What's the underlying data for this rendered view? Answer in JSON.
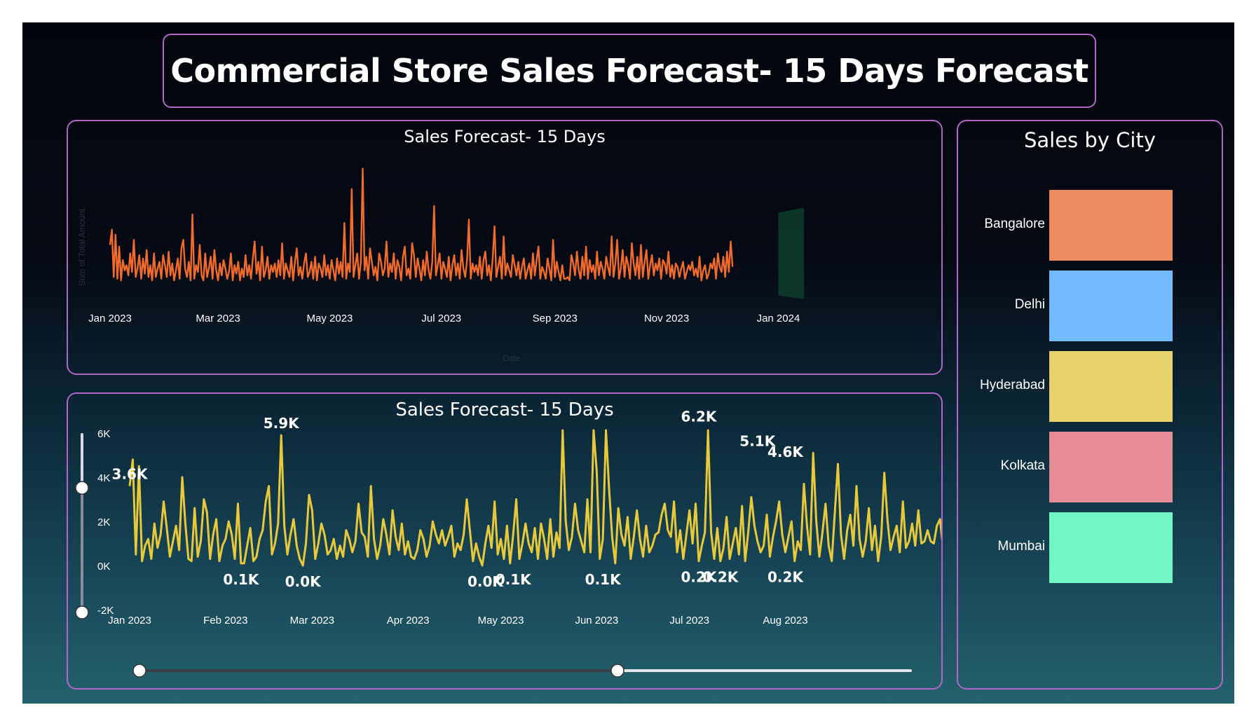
{
  "page": {
    "title": "Commercial Store Sales Forecast- 15 Days Forecast"
  },
  "chart_data": [
    {
      "type": "line",
      "title": "Sales Forecast- 15 Days",
      "xlabel": "Date",
      "ylabel": "Sum of Total Amount",
      "x_ticks": [
        "Jan 2023",
        "Mar 2023",
        "May 2023",
        "Jul 2023",
        "Sep 2023",
        "Nov 2023",
        "Jan 2024"
      ],
      "x_range": [
        "2023-01-01",
        "2024-01-15"
      ],
      "y_range": [
        0,
        6500
      ],
      "series": [
        {
          "color": "#f26b2a",
          "x_start": "2023-01-01",
          "values": [
            2300,
            3200,
            400,
            2900,
            300,
            2200,
            200,
            1400,
            800,
            1100,
            500,
            1800,
            700,
            2600,
            400,
            900,
            1700,
            300,
            1500,
            600,
            2000,
            400,
            1100,
            200,
            1800,
            400,
            900,
            1300,
            300,
            1700,
            1100,
            400,
            1900,
            500,
            1200,
            200,
            800,
            1500,
            300,
            2100,
            2600,
            900,
            400,
            1300,
            200,
            4100,
            300,
            1100,
            700,
            2300,
            500,
            200,
            1800,
            400,
            900,
            1600,
            300,
            2000,
            800,
            200,
            1200,
            500,
            1400,
            900,
            300,
            700,
            1800,
            200,
            1100,
            600,
            1300,
            200,
            900,
            400,
            1700,
            500,
            1100,
            300,
            1500,
            2500,
            600,
            1300,
            200,
            2200,
            400,
            800,
            1600,
            300,
            1100,
            700,
            1200,
            400,
            1400,
            500,
            2400,
            300,
            1200,
            800,
            400,
            1600,
            200,
            1300,
            2100,
            500,
            1000,
            300,
            1200,
            1800,
            400,
            700,
            1300,
            300,
            1600,
            200,
            1200,
            900,
            400,
            1700,
            500,
            1100,
            300,
            1400,
            800,
            200,
            1500,
            600,
            1300,
            400,
            3600,
            300,
            1200,
            700,
            5600,
            400,
            1100,
            1800,
            300,
            1300,
            6800,
            800,
            1600,
            300,
            2100,
            1300,
            500,
            1000,
            200,
            1800,
            1300,
            500,
            900,
            2500,
            400,
            1200,
            700,
            1800,
            300,
            1400,
            1000,
            200,
            1600,
            2200,
            500,
            900,
            300,
            2400,
            1700,
            400,
            1500,
            900,
            200,
            1400,
            500,
            1900,
            800,
            300,
            1300,
            4600,
            500,
            1100,
            1800,
            300,
            1300,
            900,
            400,
            1600,
            200,
            1100,
            1700,
            500,
            1200,
            300,
            2000,
            900,
            400,
            1400,
            3800,
            300,
            1200,
            700,
            1100,
            500,
            1600,
            300,
            1400,
            1900,
            500,
            1100,
            200,
            1500,
            3400,
            400,
            1000,
            1600,
            300,
            2800,
            500,
            1200,
            800,
            400,
            1700,
            1100,
            500,
            1300,
            300,
            1000,
            1500,
            300,
            800,
            1200,
            300,
            1800,
            500,
            1400,
            2200,
            300,
            1000,
            700,
            300,
            1500,
            900,
            200,
            2600,
            400,
            1300,
            700,
            200,
            1100,
            300,
            300,
            400,
            200,
            1700,
            1200,
            500,
            1900,
            800,
            300,
            1600,
            500,
            2200,
            300,
            1400,
            700,
            1100,
            300,
            1900,
            500,
            1300,
            900,
            300,
            1600,
            1000,
            500,
            2800,
            400,
            1200,
            2600,
            300,
            900,
            2000,
            400,
            1600,
            1100,
            300,
            2400,
            1200,
            500,
            1600,
            300,
            2300,
            400,
            1300,
            2000,
            300,
            1100,
            1700,
            500,
            1200,
            800,
            1500,
            300,
            1400,
            1200,
            600,
            1900,
            400,
            1100,
            300,
            1200,
            1000,
            400,
            900,
            1300,
            300,
            700,
            1100,
            800,
            1300,
            500,
            900,
            400,
            1600,
            200,
            800,
            1100,
            300,
            600,
            1200,
            900,
            1500,
            300,
            1800,
            1000,
            700,
            1600,
            400,
            1900,
            700,
            2500,
            1000
          ]
        }
      ],
      "forecast": {
        "x_start": "2024-01-01",
        "x_end": "2024-01-15",
        "color": "#0d3b2a"
      }
    },
    {
      "type": "line",
      "title": "Sales Forecast- 15 Days",
      "x_ticks": [
        "Jan 2023",
        "Feb 2023",
        "Mar 2023",
        "Apr 2023",
        "May 2023",
        "Jun 2023",
        "Jul 2023",
        "Aug 2023"
      ],
      "y_ticks": [
        "6K",
        "4K",
        "2K",
        "0K",
        "-2K"
      ],
      "x_range": [
        "2023-01-01",
        "2023-09-10"
      ],
      "y_range": [
        -2000,
        6000
      ],
      "series": [
        {
          "color": "#e8c93a",
          "x_start": "2023-01-01",
          "values": [
            3600,
            4800,
            500,
            4500,
            200,
            900,
            1200,
            300,
            1900,
            800,
            1400,
            2900,
            1700,
            400,
            1100,
            1800,
            700,
            4000,
            1900,
            300,
            200,
            2600,
            400,
            1100,
            3000,
            2400,
            300,
            1400,
            2100,
            200,
            900,
            1200,
            2000,
            1400,
            300,
            2800,
            100,
            100,
            900,
            1700,
            200,
            400,
            1200,
            1600,
            2900,
            3600,
            500,
            1000,
            1900,
            5900,
            1800,
            500,
            1400,
            2100,
            900,
            300,
            0,
            1000,
            3200,
            2500,
            300,
            1000,
            1900,
            1400,
            500,
            700,
            1200,
            300,
            900,
            400,
            1600,
            1200,
            600,
            1100,
            2800,
            1500,
            1300,
            400,
            3600,
            1200,
            300,
            900,
            2100,
            1400,
            500,
            2500,
            1300,
            700,
            1900,
            500,
            1100,
            400,
            300,
            700,
            1600,
            1200,
            400,
            900,
            2000,
            1400,
            1000,
            1600,
            900,
            1300,
            1800,
            400,
            1000,
            700,
            1400,
            3000,
            1600,
            200,
            1000,
            400,
            0,
            1000,
            1800,
            800,
            2900,
            500,
            1200,
            300,
            1800,
            100,
            1400,
            3000,
            300,
            1000,
            1900,
            1000,
            600,
            1700,
            300,
            1900,
            1200,
            300,
            2100,
            400,
            1500,
            800,
            6500,
            2000,
            700,
            1300,
            2800,
            1600,
            1100,
            600,
            3000,
            600,
            6500,
            4300,
            300,
            1200,
            6500,
            3500,
            1300,
            100,
            2600,
            1400,
            900,
            2200,
            300,
            1300,
            2500,
            1200,
            400,
            1800,
            600,
            900,
            1400,
            1500,
            2300,
            2800,
            1600,
            1300,
            2900,
            600,
            1600,
            300,
            1400,
            2500,
            1000,
            2800,
            200,
            900,
            1500,
            6200,
            1500,
            300,
            1700,
            200,
            800,
            2200,
            300,
            1000,
            1700,
            500,
            2700,
            200,
            1500,
            3100,
            1800,
            1100,
            600,
            900,
            2300,
            400,
            1300,
            2000,
            2900,
            1400,
            600,
            1300,
            2000,
            200,
            1100,
            700,
            3700,
            1800,
            500,
            5100,
            2000,
            400,
            1500,
            2800,
            900,
            200,
            2400,
            4600,
            1400,
            300,
            1600,
            2300,
            900,
            3600,
            1200,
            400,
            1100,
            2600,
            700,
            1800,
            200,
            1300,
            4200,
            2100,
            700,
            1300,
            1800,
            600,
            2900,
            800,
            1100,
            1900,
            900,
            2500,
            1000,
            1100,
            1600,
            1100,
            1000,
            1800,
            2100,
            800,
            700,
            1500,
            1700,
            500,
            1300,
            1800,
            1600,
            1100,
            700,
            1800
          ]
        }
      ],
      "data_labels": [
        {
          "text": "3.6K",
          "x": "2023-01-01",
          "y": 3600
        },
        {
          "text": "0.1K",
          "x": "2023-02-06",
          "y": 100
        },
        {
          "text": "5.9K",
          "x": "2023-02-19",
          "y": 5900
        },
        {
          "text": "0.0K",
          "x": "2023-02-26",
          "y": 0
        },
        {
          "text": "0.0K",
          "x": "2023-04-26",
          "y": 0
        },
        {
          "text": "0.1K",
          "x": "2023-05-05",
          "y": 100
        },
        {
          "text": "0.1K",
          "x": "2023-06-03",
          "y": 100
        },
        {
          "text": "6.2K",
          "x": "2023-07-04",
          "y": 6200
        },
        {
          "text": "0.2K",
          "x": "2023-07-04",
          "y": 200
        },
        {
          "text": "0.2K",
          "x": "2023-07-11",
          "y": 200
        },
        {
          "text": "5.1K",
          "x": "2023-07-23",
          "y": 5100
        },
        {
          "text": "0.2K",
          "x": "2023-08-01",
          "y": 200
        },
        {
          "text": "4.6K",
          "x": "2023-08-01",
          "y": 4600
        }
      ],
      "zoom_x": [
        0,
        0.62
      ],
      "zoom_y": [
        0.3,
        1
      ]
    },
    {
      "type": "bar",
      "title": "Sales by City",
      "categories": [
        "Bangalore",
        "Delhi",
        "Hyderabad",
        "Kolkata",
        "Mumbai"
      ],
      "colors": [
        "#ec8b5e",
        "#74baff",
        "#e8d26b",
        "#e68c96",
        "#72f7c4"
      ]
    }
  ]
}
